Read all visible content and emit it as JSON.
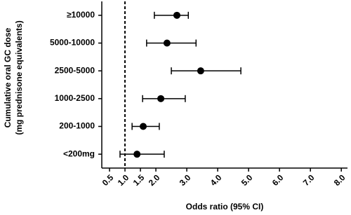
{
  "chart_data": {
    "type": "forest",
    "ylabel": [
      "Cumulative oral GC dose",
      "(mg prednisone equivalents)"
    ],
    "xlabel": "Odds ratio (95% CI)",
    "categories": [
      "≥10000",
      "5000-10000",
      "2500-5000",
      "1000-2500",
      "200-1000",
      "<200mg"
    ],
    "values": [
      2.68,
      2.36,
      3.45,
      2.16,
      1.59,
      1.39
    ],
    "lower": [
      1.95,
      1.7,
      2.5,
      1.57,
      1.23,
      0.84
    ],
    "upper": [
      3.05,
      3.3,
      4.75,
      2.95,
      2.11,
      2.27
    ],
    "color": "#000000",
    "ref_line": 1,
    "xlim": [
      0.25,
      8.2
    ],
    "xticks": [
      0.5,
      {
        "value": 1,
        "label": "1.0"
      },
      1.5,
      {
        "value": 2,
        "label": "2.0"
      },
      {
        "value": 3,
        "label": "3.0"
      },
      {
        "value": 4,
        "label": "4.0"
      },
      {
        "value": 5,
        "label": "5.0"
      },
      {
        "value": 6,
        "label": "6.0"
      },
      {
        "value": 7,
        "label": "7.0"
      },
      {
        "value": 8,
        "label": "8.0"
      }
    ]
  }
}
